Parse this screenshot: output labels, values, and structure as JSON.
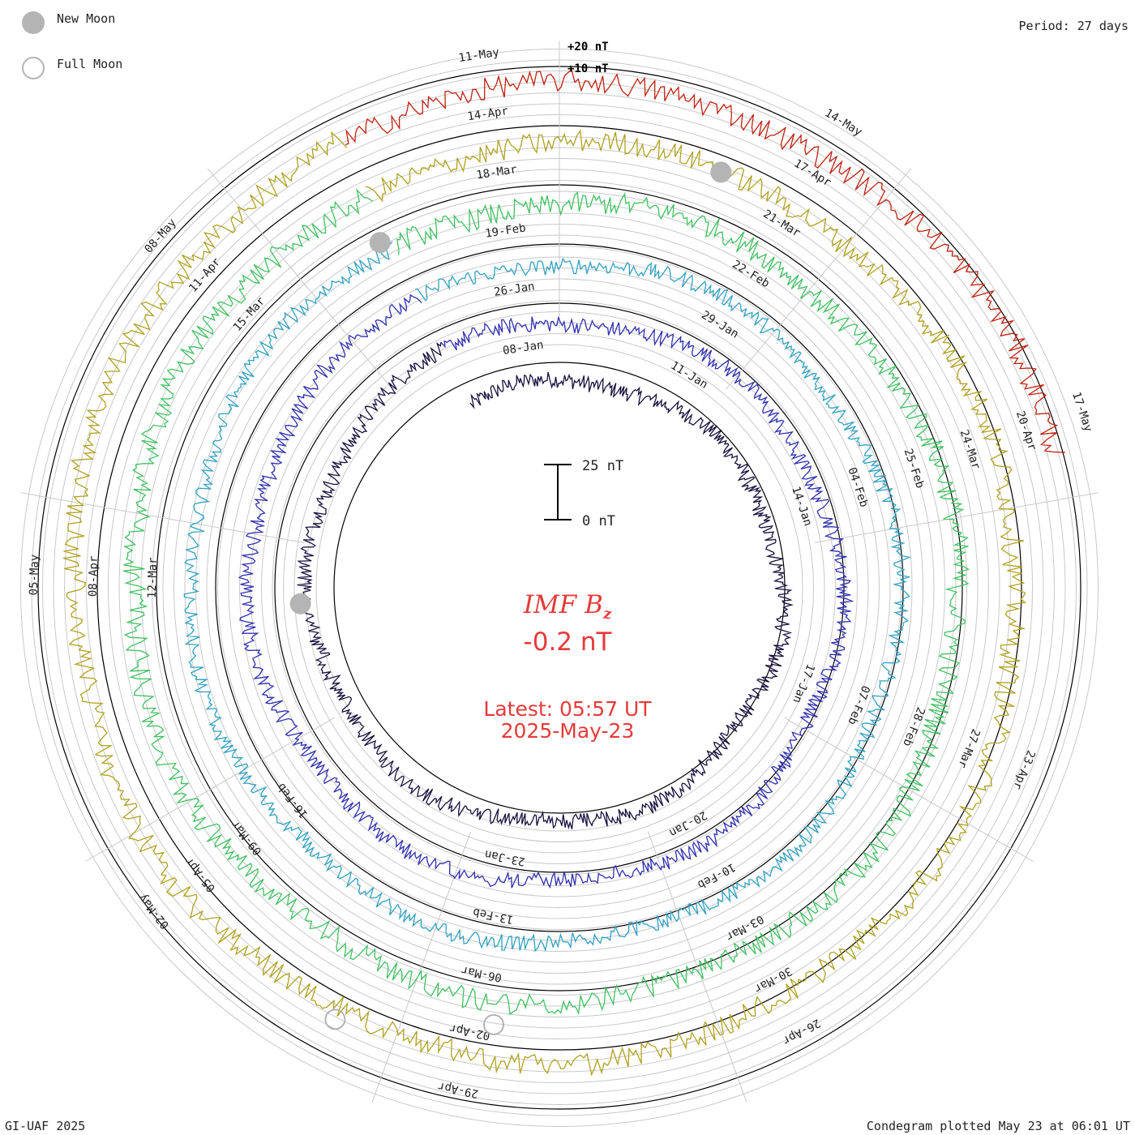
{
  "legend": {
    "new_moon": "New Moon",
    "full_moon": "Full Moon",
    "new_moon_color": "#b4b4b4"
  },
  "period_label": "Period: 27 days",
  "footer": {
    "left": "GI-UAF 2025",
    "right": "Condegram plotted May 23 at 06:01 UT"
  },
  "center": {
    "title_main": "IMF B",
    "title_sub": "z",
    "value": "-0.2 nT",
    "latest_line1": "Latest: 05:57 UT",
    "latest_line2": "2025-May-23",
    "color": "#e63a3a"
  },
  "chart_data": {
    "type": "condegram",
    "title": "IMF Bz",
    "units": "nT",
    "period_days": 27,
    "current_value": -0.2,
    "scale_bar": {
      "top_label": "25 nT",
      "bottom_label": "0 nT",
      "top_value": 25,
      "bottom_value": 0
    },
    "ring_scale_labels": [
      "+20 nT",
      "+10 nT"
    ],
    "cycles": [
      {
        "index": 1,
        "color": "#1a1040",
        "start_date": "08-Jan",
        "date_labels": [
          "08-Jan",
          "11-Jan",
          "14-Jan",
          "17-Jan",
          "20-Jan",
          "23-Jan"
        ]
      },
      {
        "index": 2,
        "color": "#3030b0",
        "start_date": "04-Feb",
        "date_labels": [
          "26-Jan",
          "29-Jan",
          "04-Feb",
          "07-Feb",
          "10-Feb",
          "13-Feb",
          "16-Feb"
        ]
      },
      {
        "index": 3,
        "color": "#30a0c0",
        "start_date": "03-Mar",
        "date_labels": [
          "19-Feb",
          "22-Feb",
          "25-Feb",
          "28-Feb",
          "03-Mar",
          "06-Mar",
          "09-Mar",
          "12-Mar",
          "15-Mar"
        ]
      },
      {
        "index": 4,
        "color": "#40c060",
        "start_date": "30-Mar",
        "date_labels": [
          "18-Mar",
          "21-Mar",
          "24-Mar",
          "27-Mar",
          "30-Mar",
          "02-Apr",
          "05-Apr",
          "08-Apr",
          "11-Apr"
        ]
      },
      {
        "index": 5,
        "color": "#b0a020",
        "start_date": "26-Apr",
        "date_labels": [
          "14-Apr",
          "17-Apr",
          "20-Apr",
          "23-Apr",
          "26-Apr",
          "29-Apr",
          "02-May",
          "05-May",
          "08-May"
        ]
      },
      {
        "index": 6,
        "color": "#c02010",
        "start_date": "11-May",
        "date_labels": [
          "11-May",
          "14-May",
          "17-May"
        ]
      }
    ],
    "date_labels": [
      "08-Jan",
      "11-Jan",
      "14-Jan",
      "17-Jan",
      "20-Jan",
      "23-Jan",
      "26-Jan",
      "29-Jan",
      "04-Feb",
      "07-Feb",
      "10-Feb",
      "13-Feb",
      "16-Feb",
      "19-Feb",
      "22-Feb",
      "25-Feb",
      "28-Feb",
      "03-Mar",
      "06-Mar",
      "09-Mar",
      "12-Mar",
      "15-Mar",
      "18-Mar",
      "21-Mar",
      "24-Mar",
      "27-Mar",
      "30-Mar",
      "02-Apr",
      "05-Apr",
      "08-Apr",
      "11-Apr",
      "14-Apr",
      "17-Apr",
      "20-Apr",
      "23-Apr",
      "26-Apr",
      "29-Apr",
      "02-May",
      "05-May",
      "08-May",
      "11-May",
      "14-May",
      "17-May"
    ]
  }
}
